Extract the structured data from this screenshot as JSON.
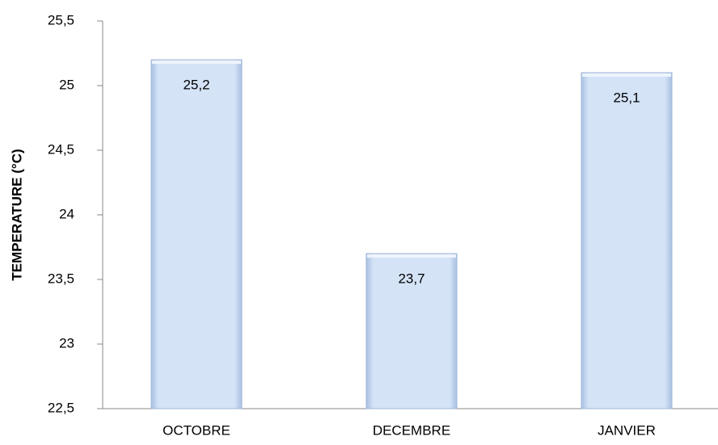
{
  "chart_data": {
    "type": "bar",
    "y_label": "TEMPERATURE (°C)",
    "categories": [
      "OCTOBRE",
      "DECEMBRE",
      "JANVIER"
    ],
    "values": [
      25.2,
      23.7,
      25.1
    ],
    "value_labels": [
      "25,2",
      "23,7",
      "25,1"
    ],
    "color": "#c6d9f1",
    "ylim": [
      22.5,
      25.5
    ],
    "yticks": [
      {
        "value": 22.5,
        "label": "22,5"
      },
      23,
      {
        "value": 23.5,
        "label": "23,5"
      },
      24,
      {
        "value": 24.5,
        "label": "24,5"
      },
      25,
      {
        "value": 25.5,
        "label": "25,5"
      }
    ],
    "grid": false
  }
}
